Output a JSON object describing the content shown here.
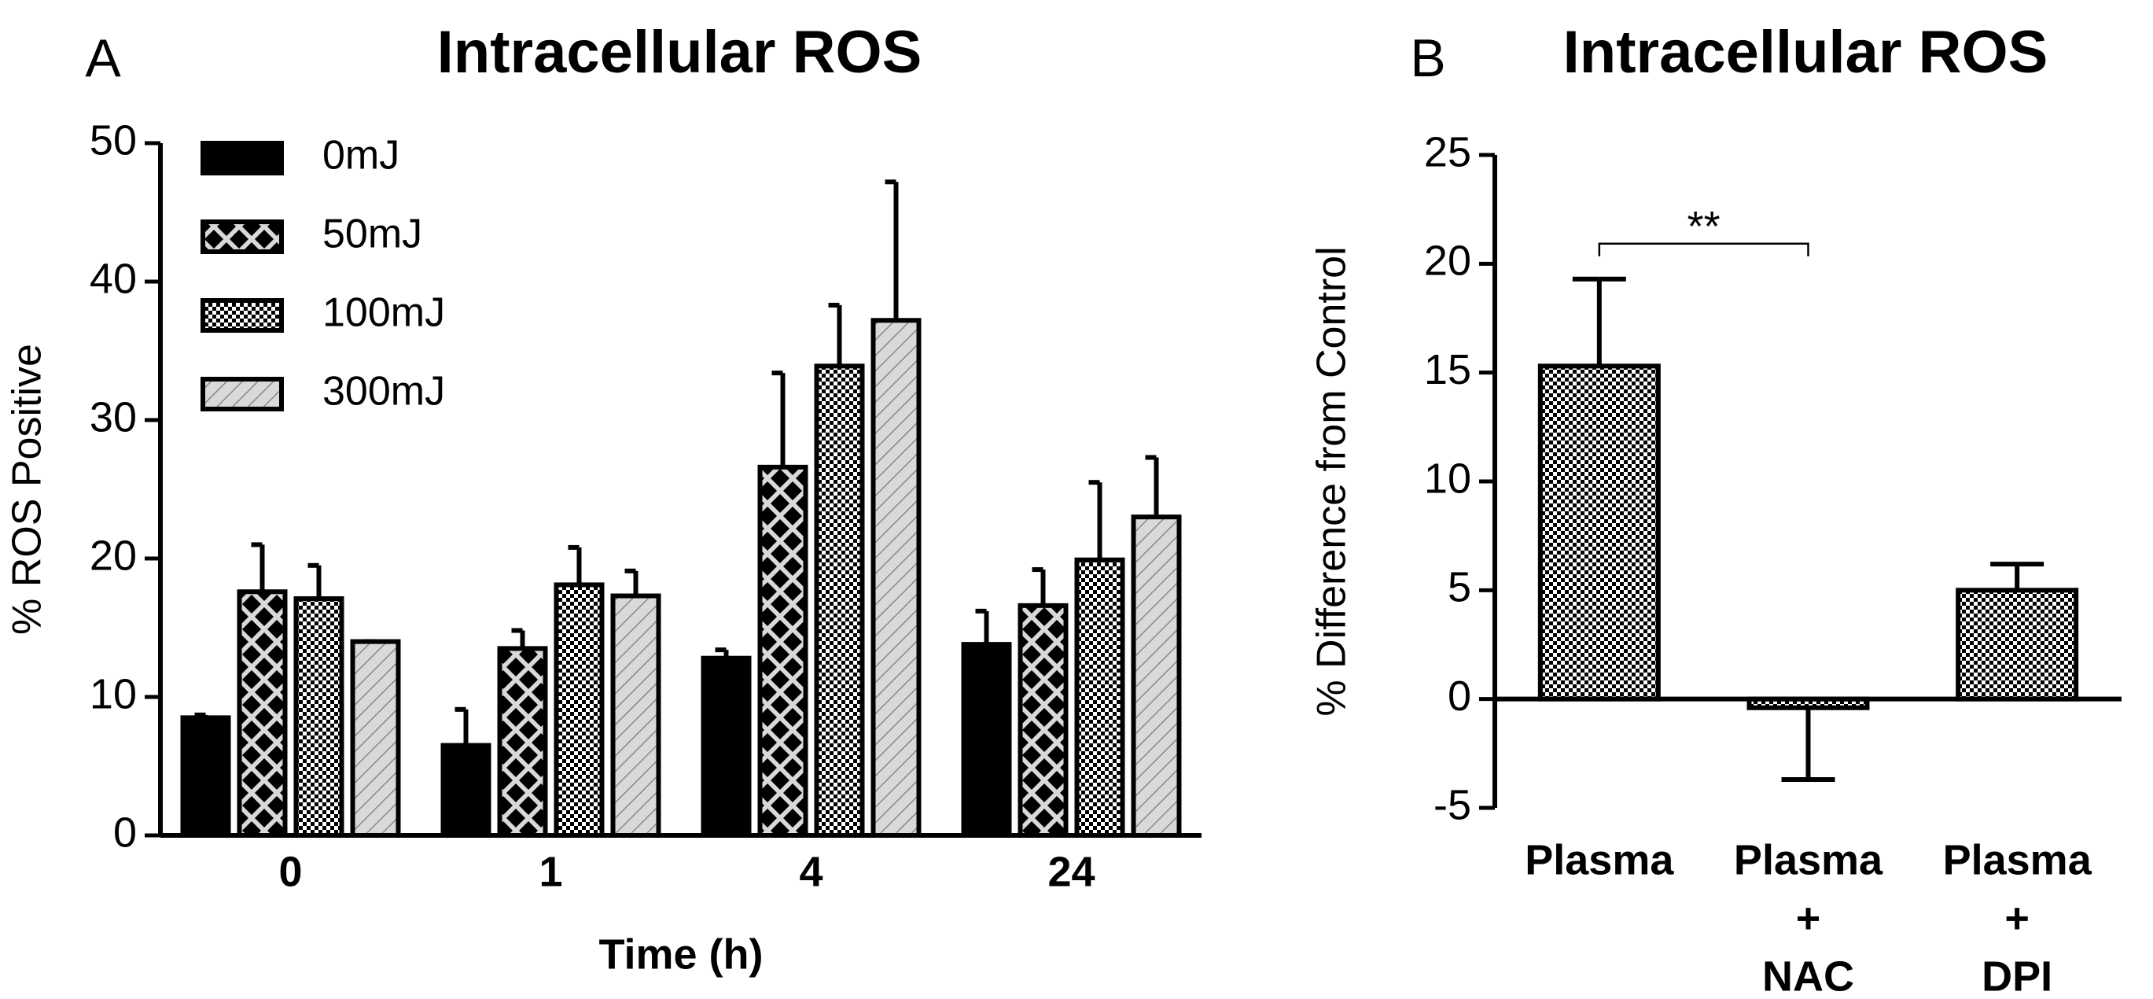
{
  "chart_data": [
    {
      "type": "bar",
      "panel": "A",
      "title": "Intracellular ROS",
      "x_label": "Time (h)",
      "y_label": "% ROS Positive",
      "categories": [
        "0",
        "1",
        "4",
        "24"
      ],
      "series": [
        {
          "name": "0mJ",
          "color": "#000000",
          "pattern": "solid",
          "values": [
            8.5,
            6.5,
            12.8,
            13.8
          ],
          "errors": [
            0.2,
            2.6,
            0.6,
            2.4
          ]
        },
        {
          "name": "50mJ",
          "color": "#d9d9d9",
          "pattern": "diamond",
          "values": [
            17.6,
            13.5,
            26.6,
            16.6
          ],
          "errors": [
            3.4,
            1.3,
            6.8,
            2.6
          ]
        },
        {
          "name": "100mJ",
          "color": "#ffffff",
          "pattern": "checker",
          "values": [
            17.1,
            18.1,
            33.9,
            19.9
          ],
          "errors": [
            2.4,
            2.7,
            4.4,
            5.6
          ]
        },
        {
          "name": "300mJ",
          "color": "#d9d9d9",
          "pattern": "hatch",
          "values": [
            14.0,
            17.3,
            37.2,
            23.0
          ],
          "errors": [
            0,
            1.8,
            10.0,
            4.3
          ]
        }
      ],
      "ylim": [
        0,
        50
      ],
      "yticks": [
        0,
        10,
        20,
        30,
        40,
        50
      ],
      "legend": "top-left"
    },
    {
      "type": "bar",
      "panel": "B",
      "title": "Intracellular ROS",
      "y_label": "% Difference from Control",
      "categories": [
        [
          "Plasma"
        ],
        [
          "Plasma",
          "+",
          "NAC"
        ],
        [
          "Plasma",
          "+",
          "DPI"
        ]
      ],
      "series": [
        {
          "color": "#ffffff",
          "pattern": "checker",
          "values": [
            15.3,
            -0.4,
            5.0
          ],
          "errors": [
            4.0,
            3.3,
            1.2
          ]
        }
      ],
      "annotation": {
        "text": "**",
        "from": 0,
        "to": 1
      },
      "ylim": [
        -5,
        25
      ],
      "yticks": [
        -5,
        0,
        5,
        10,
        15,
        20,
        25
      ]
    }
  ]
}
